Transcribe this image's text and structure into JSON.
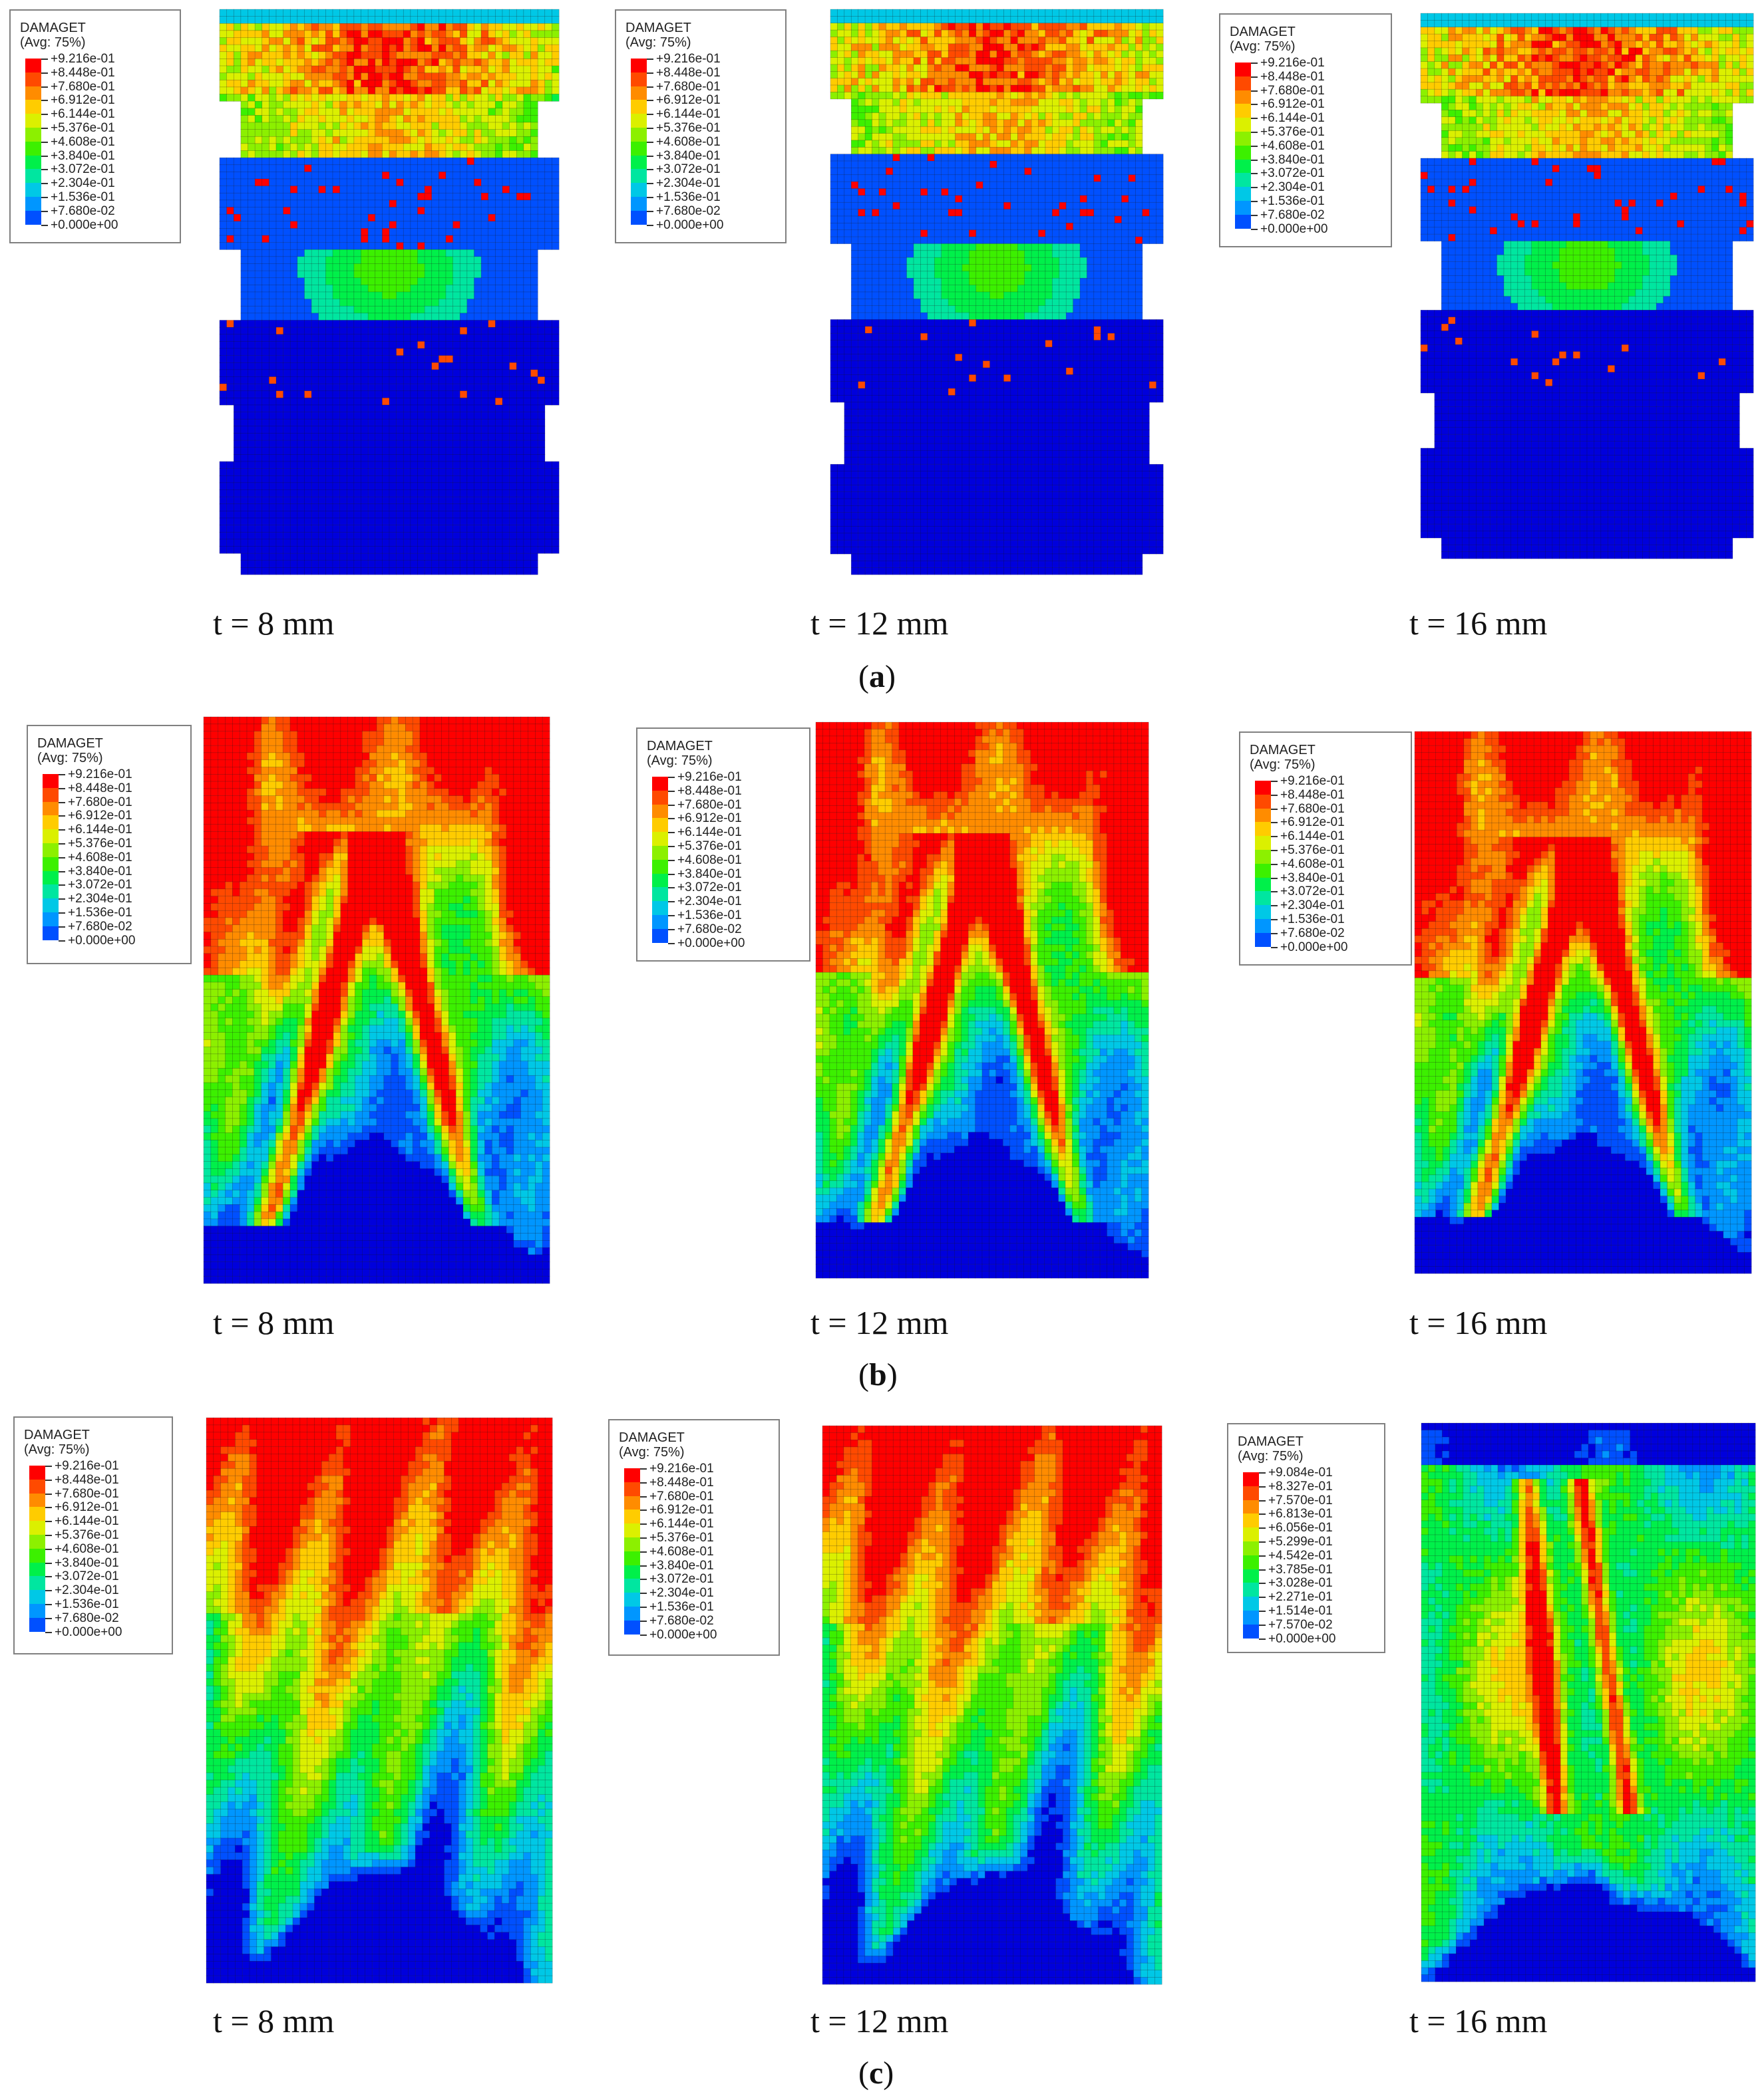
{
  "legend_common": {
    "title": "DAMAGET",
    "subtitle": "(Avg: 75%)",
    "values": [
      "+9.216e-01",
      "+8.448e-01",
      "+7.680e-01",
      "+6.912e-01",
      "+6.144e-01",
      "+5.376e-01",
      "+4.608e-01",
      "+3.840e-01",
      "+3.072e-01",
      "+2.304e-01",
      "+1.536e-01",
      "+7.680e-02",
      "+0.000e+00"
    ]
  },
  "legend_alt": {
    "title": "DAMAGET",
    "subtitle": "(Avg: 75%)",
    "values": [
      "+9.084e-01",
      "+8.327e-01",
      "+7.570e-01",
      "+6.813e-01",
      "+6.056e-01",
      "+5.299e-01",
      "+4.542e-01",
      "+3.785e-01",
      "+3.028e-01",
      "+2.271e-01",
      "+1.514e-01",
      "+7.570e-02",
      "+0.000e+00"
    ]
  },
  "colormap": [
    "#ff0000",
    "#ff4a00",
    "#ff8c00",
    "#ffcc00",
    "#dbf000",
    "#8cf000",
    "#3cf000",
    "#00f04a",
    "#00e6a0",
    "#00c8e6",
    "#0096ff",
    "#0050ff",
    "#0000dc"
  ],
  "mesh_line_color": "#1a1a1a",
  "captions": {
    "a1": "t = 8 mm",
    "a2": "t = 12 mm",
    "a3": "t = 16 mm",
    "b1": "t = 8 mm",
    "b2": "t = 12 mm",
    "b3": "t = 16 mm",
    "c1": "t = 8 mm",
    "c2": "t = 12 mm",
    "c3": "t = 16 mm"
  },
  "subfigures": {
    "a": "a",
    "b": "b",
    "c": "c"
  }
}
